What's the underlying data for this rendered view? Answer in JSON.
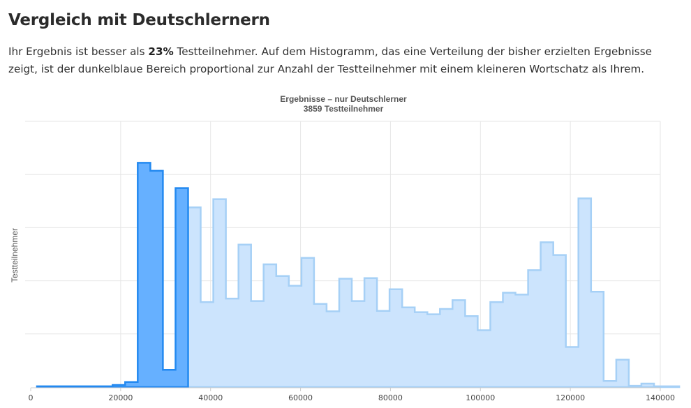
{
  "heading": "Vergleich mit Deutschlernern",
  "intro": {
    "before": "Ihr Ergebnis ist besser als ",
    "percent": "23%",
    "after": " Testteilnehmer. Auf dem Histogramm, das eine Verteilung der bisher erzielten Ergebnisse zeigt, ist der dunkelblaue Bereich proportional zur Anzahl der Testteilnehmer mit einem kleineren Wortschatz als Ihrem."
  },
  "chart_data": {
    "type": "area",
    "title": "Ergebnisse – nur Deutschlerner",
    "subtitle": "3859 Testteilnehmer",
    "xlabel": "",
    "ylabel": "Testteilnehmer",
    "xlim": [
      0,
      140000
    ],
    "ylim": [
      0,
      100
    ],
    "x_ticks": [
      0,
      20000,
      40000,
      60000,
      80000,
      100000,
      120000,
      140000
    ],
    "y_grid": [
      20,
      40,
      60,
      80,
      100
    ],
    "grid": true,
    "bin_width": 2800,
    "bin_start": 1400,
    "threshold": 35000,
    "values": [
      0.3,
      0.3,
      0.3,
      0.3,
      0.3,
      0.3,
      0.8,
      1.9,
      84.4,
      81.4,
      6.5,
      74.9,
      67.6,
      32.0,
      70.7,
      33.3,
      53.6,
      32.4,
      46.2,
      41.8,
      38.1,
      48.6,
      31.3,
      28.5,
      40.8,
      32.4,
      41.0,
      28.7,
      36.8,
      30.0,
      28.2,
      27.4,
      29.4,
      32.7,
      26.7,
      21.4,
      32.0,
      35.5,
      34.8,
      44.0,
      54.5,
      49.7,
      15.1,
      71.0,
      35.9,
      2.3,
      10.3,
      0.5,
      1.3,
      0.3,
      0.3
    ],
    "colors": {
      "below_fill": "#66b0ff",
      "below_stroke": "#2389f0",
      "above_fill": "#cce4fd",
      "above_stroke": "#a6d0f6",
      "grid": "#e6e6e6",
      "axis": "#cccccc"
    }
  }
}
